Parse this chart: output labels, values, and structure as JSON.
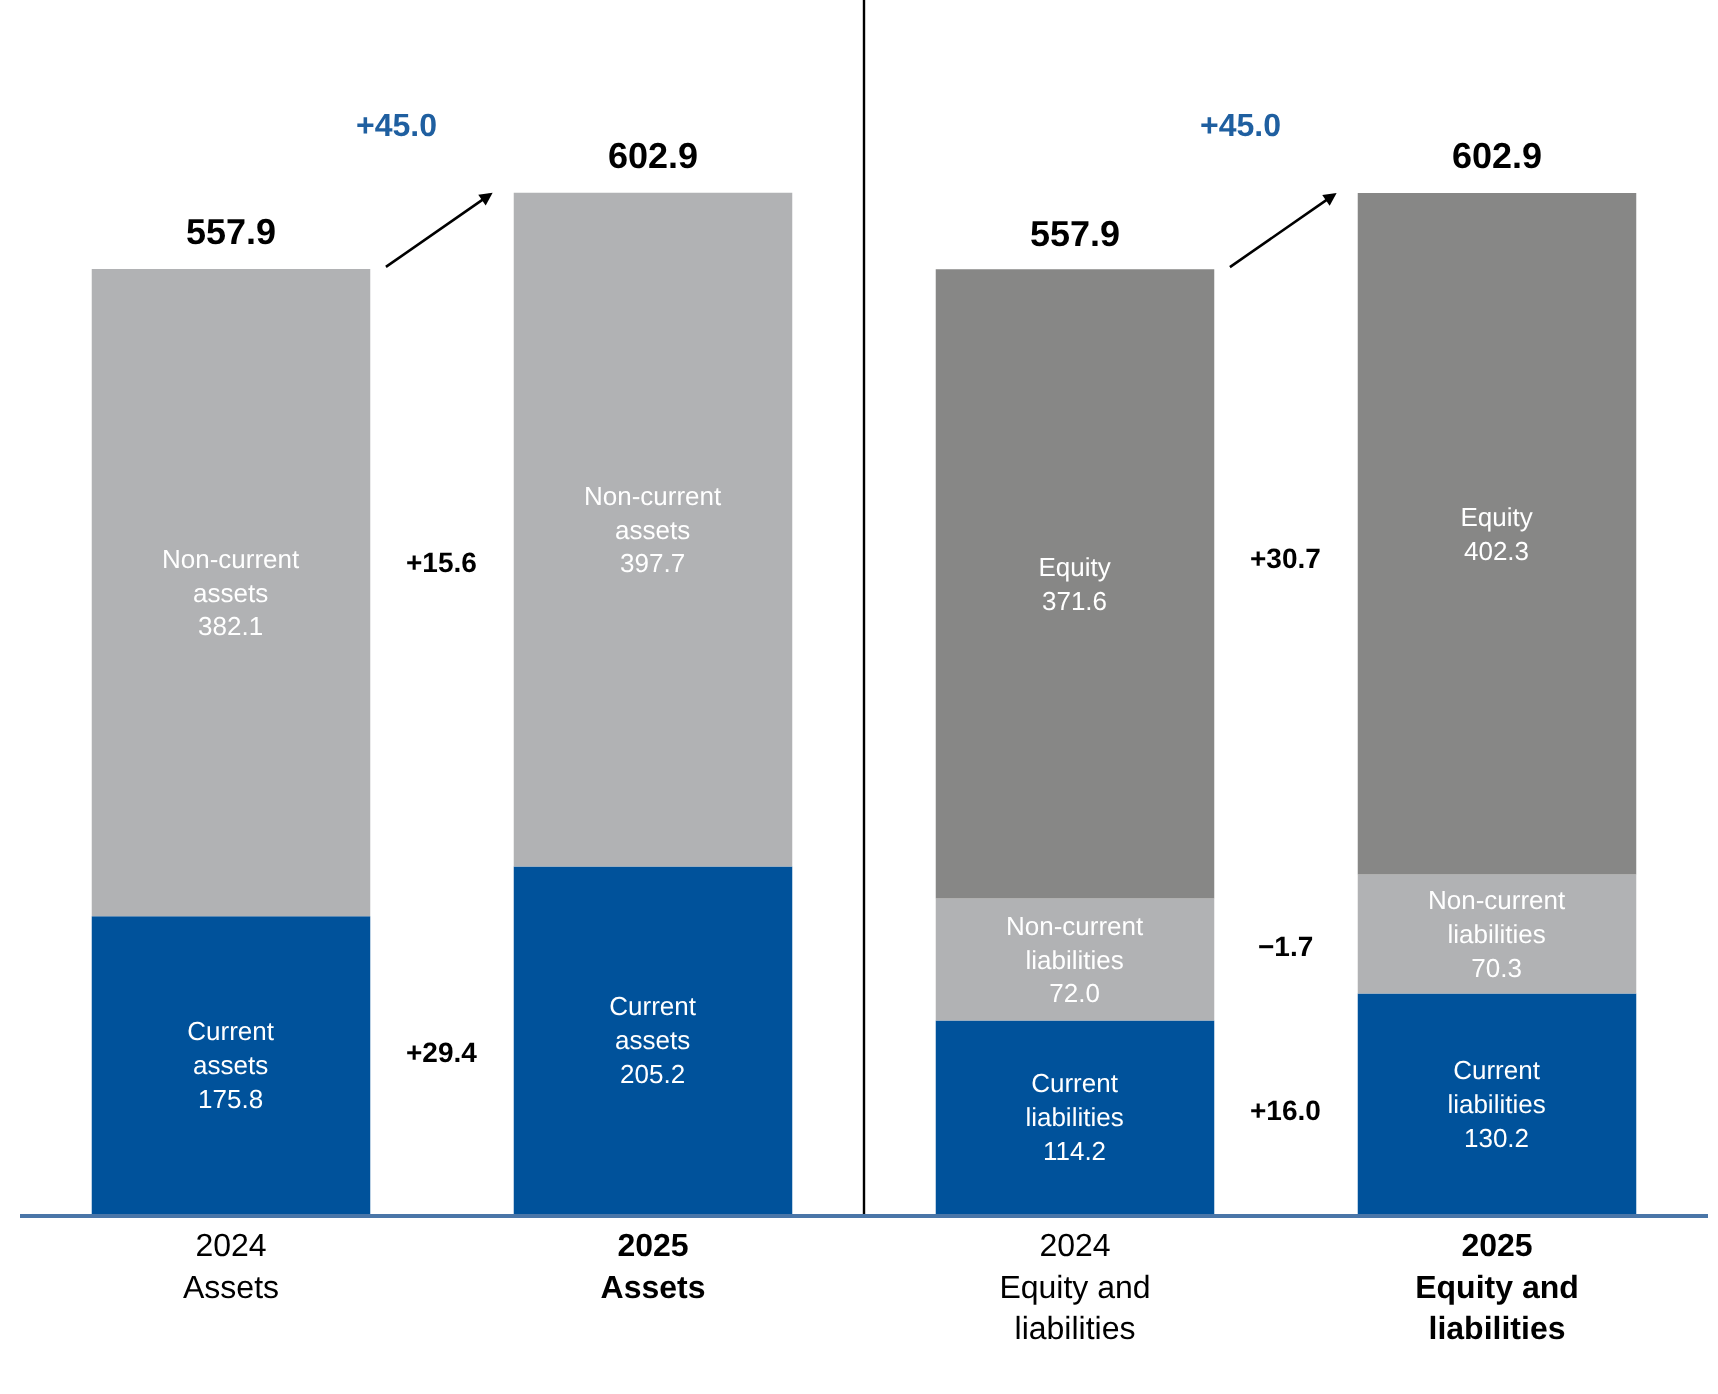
{
  "chart_data": [
    {
      "type": "bar",
      "stacked": true,
      "categories": [
        "2024\nAssets",
        "2025\nAssets"
      ],
      "series": [
        {
          "color": "#00529b",
          "values": [
            175.8,
            205.2
          ],
          "value_labels": [
            "Current\nassets\n175.8",
            "Current\nassets\n205.2"
          ]
        },
        {
          "color": "#b1b2b4",
          "values": [
            382.1,
            397.7
          ],
          "value_labels": [
            "Non-current\nassets\n382.1",
            "Non-current\nassets\n397.7"
          ]
        }
      ],
      "totals": [
        "557.9",
        "602.9"
      ],
      "annotations": [
        "+45.0",
        "+15.6",
        "+29.4"
      ]
    },
    {
      "type": "bar",
      "stacked": true,
      "categories": [
        "2024\nEquity and\nliabilities",
        "2025\nEquity and\nliabilities"
      ],
      "series": [
        {
          "color": "#00529b",
          "values": [
            114.2,
            130.2
          ],
          "value_labels": [
            "Current\nliabilities\n114.2",
            "Current\nliabilities\n130.2"
          ]
        },
        {
          "color": "#b1b2b4",
          "values": [
            72.0,
            70.3
          ],
          "value_labels": [
            "Non-current\nliabilities\n72.0",
            "Non-current\nliabilities\n70.3"
          ]
        },
        {
          "color": "#878786",
          "values": [
            371.6,
            402.3
          ],
          "value_labels": [
            "Equity\n371.6",
            "Equity\n402.3"
          ]
        }
      ],
      "totals": [
        "557.9",
        "602.9"
      ],
      "annotations": [
        "+45.0",
        "+30.7",
        "−1.7",
        "+16.0"
      ]
    }
  ]
}
